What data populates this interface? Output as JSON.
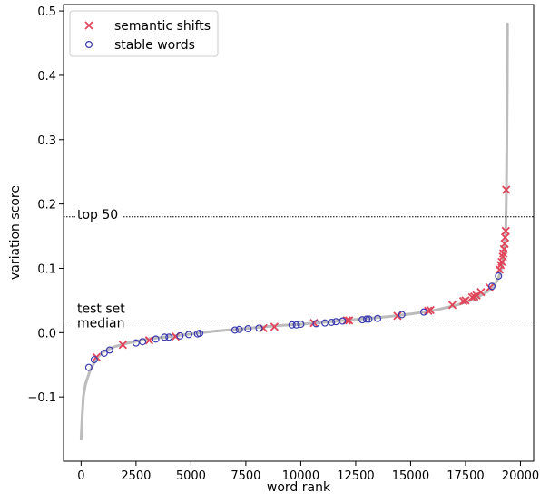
{
  "chart_data": {
    "type": "scatter",
    "title": "",
    "xlabel": "word rank",
    "ylabel": "variation score",
    "xlim": [
      -800,
      20600
    ],
    "ylim": [
      -0.2,
      0.51
    ],
    "xticks": [
      0,
      2500,
      5000,
      7500,
      10000,
      12500,
      15000,
      17500,
      20000
    ],
    "xtick_labels": [
      "0",
      "2500",
      "5000",
      "7500",
      "10000",
      "12500",
      "15000",
      "17500",
      "20000"
    ],
    "yticks": [
      -0.1,
      0.0,
      0.1,
      0.2,
      0.3,
      0.4,
      0.5
    ],
    "ytick_labels": [
      "−0.1",
      "0.0",
      "0.1",
      "0.2",
      "0.3",
      "0.4",
      "0.5"
    ],
    "grid": false,
    "legend_position": "top-left",
    "reference_lines": [
      {
        "label": "top 50",
        "y": 0.18
      },
      {
        "label_lines": [
          "test set",
          "median"
        ],
        "y": 0.018
      }
    ],
    "background_curve": {
      "color": "#b0b0b0",
      "points": [
        [
          0,
          -0.165
        ],
        [
          50,
          -0.13
        ],
        [
          100,
          -0.1
        ],
        [
          200,
          -0.08
        ],
        [
          400,
          -0.06
        ],
        [
          700,
          -0.04
        ],
        [
          1000,
          -0.03
        ],
        [
          1500,
          -0.022
        ],
        [
          2000,
          -0.017
        ],
        [
          3000,
          -0.01
        ],
        [
          4000,
          -0.006
        ],
        [
          5000,
          -0.002
        ],
        [
          6000,
          0.002
        ],
        [
          7000,
          0.005
        ],
        [
          8000,
          0.008
        ],
        [
          9000,
          0.011
        ],
        [
          10000,
          0.013
        ],
        [
          11000,
          0.016
        ],
        [
          12000,
          0.019
        ],
        [
          13000,
          0.022
        ],
        [
          14000,
          0.025
        ],
        [
          15000,
          0.029
        ],
        [
          16000,
          0.034
        ],
        [
          17000,
          0.042
        ],
        [
          17500,
          0.047
        ],
        [
          18000,
          0.054
        ],
        [
          18500,
          0.064
        ],
        [
          18800,
          0.073
        ],
        [
          19000,
          0.085
        ],
        [
          19100,
          0.095
        ],
        [
          19200,
          0.11
        ],
        [
          19280,
          0.13
        ],
        [
          19330,
          0.16
        ],
        [
          19360,
          0.22
        ],
        [
          19380,
          0.3
        ],
        [
          19400,
          0.4
        ],
        [
          19410,
          0.48
        ]
      ]
    },
    "series": [
      {
        "name": "semantic shifts",
        "color": "#e0455a",
        "marker": "x",
        "points": [
          [
            700,
            -0.038
          ],
          [
            1900,
            -0.019
          ],
          [
            3100,
            -0.012
          ],
          [
            4300,
            -0.006
          ],
          [
            8300,
            0.007
          ],
          [
            8800,
            0.009
          ],
          [
            10600,
            0.015
          ],
          [
            12100,
            0.019
          ],
          [
            12200,
            0.019
          ],
          [
            14400,
            0.026
          ],
          [
            15800,
            0.034
          ],
          [
            15900,
            0.035
          ],
          [
            16900,
            0.043
          ],
          [
            17400,
            0.049
          ],
          [
            17500,
            0.05
          ],
          [
            17800,
            0.055
          ],
          [
            17900,
            0.056
          ],
          [
            18000,
            0.058
          ],
          [
            18200,
            0.063
          ],
          [
            18600,
            0.07
          ],
          [
            19050,
            0.098
          ],
          [
            19100,
            0.105
          ],
          [
            19150,
            0.11
          ],
          [
            19200,
            0.118
          ],
          [
            19220,
            0.123
          ],
          [
            19250,
            0.13
          ],
          [
            19280,
            0.138
          ],
          [
            19300,
            0.148
          ],
          [
            19330,
            0.158
          ],
          [
            19350,
            0.222
          ]
        ]
      },
      {
        "name": "stable words",
        "color": "#3a3ab0",
        "marker": "o",
        "points": [
          [
            350,
            -0.054
          ],
          [
            600,
            -0.042
          ],
          [
            1050,
            -0.032
          ],
          [
            1300,
            -0.027
          ],
          [
            2500,
            -0.016
          ],
          [
            2800,
            -0.014
          ],
          [
            3400,
            -0.01
          ],
          [
            3800,
            -0.007
          ],
          [
            4000,
            -0.007
          ],
          [
            4500,
            -0.005
          ],
          [
            4900,
            -0.003
          ],
          [
            5300,
            -0.002
          ],
          [
            5400,
            -0.001
          ],
          [
            7000,
            0.004
          ],
          [
            7200,
            0.005
          ],
          [
            7600,
            0.006
          ],
          [
            8100,
            0.007
          ],
          [
            9600,
            0.012
          ],
          [
            9800,
            0.012
          ],
          [
            10000,
            0.013
          ],
          [
            10700,
            0.014
          ],
          [
            11100,
            0.015
          ],
          [
            11400,
            0.016
          ],
          [
            11600,
            0.017
          ],
          [
            11900,
            0.018
          ],
          [
            12800,
            0.02
          ],
          [
            13000,
            0.021
          ],
          [
            13100,
            0.021
          ],
          [
            13500,
            0.022
          ],
          [
            14600,
            0.028
          ],
          [
            15600,
            0.032
          ],
          [
            18700,
            0.072
          ],
          [
            19000,
            0.088
          ]
        ]
      }
    ]
  }
}
